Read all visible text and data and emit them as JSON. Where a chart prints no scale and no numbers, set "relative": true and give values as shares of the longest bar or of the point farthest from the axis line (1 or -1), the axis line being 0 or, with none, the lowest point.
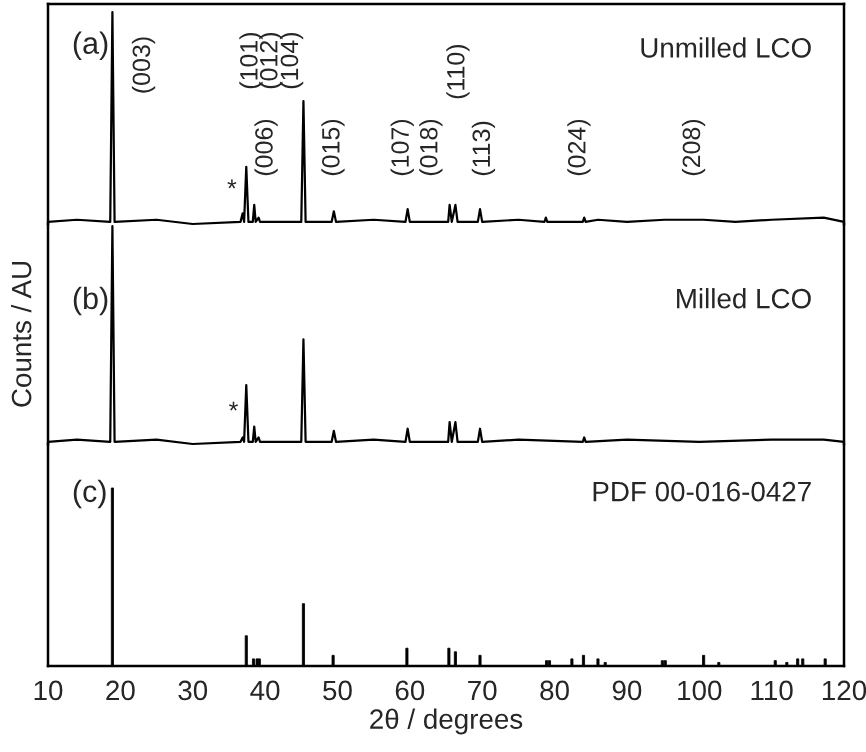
{
  "chart_data": [
    {
      "type": "line",
      "relative": true,
      "xlim": [
        10,
        120
      ],
      "tick_labels": false,
      "series": [
        {
          "color": "#000000",
          "x": [
            10,
            14,
            18.6,
            18.9,
            19.2,
            25,
            30,
            36.6,
            36.9,
            37.1,
            37.4,
            37.7,
            38.3,
            38.5,
            38.7,
            39.1,
            39.3,
            45.0,
            45.3,
            45.6,
            49.2,
            49.5,
            49.8,
            55,
            59.4,
            59.7,
            60.0,
            65.3,
            65.5,
            65.8,
            66.3,
            66.6,
            69.4,
            69.7,
            70.0,
            75,
            78.6,
            78.8,
            79.0,
            83.9,
            84.1,
            84.3,
            86,
            90,
            95.2,
            100.6,
            105,
            110,
            117.2,
            120
          ],
          "values": [
            0.01,
            0.02,
            0.01,
            1.0,
            0.01,
            0.02,
            0,
            0.01,
            0.05,
            0.01,
            0.27,
            0.01,
            0.01,
            0.09,
            0.01,
            0.03,
            0.01,
            0.01,
            0.58,
            0.01,
            0.01,
            0.06,
            0.01,
            0.02,
            0.01,
            0.07,
            0.01,
            0.01,
            0.09,
            0.01,
            0.09,
            0.01,
            0.01,
            0.07,
            0.01,
            0.02,
            0.01,
            0.03,
            0.01,
            0.01,
            0.03,
            0.01,
            0.02,
            0.01,
            0.02,
            0.02,
            0.01,
            0.02,
            0.03,
            0.01
          ]
        }
      ],
      "xticks": [
        10,
        20,
        30,
        40,
        50,
        60,
        70,
        80,
        90,
        100,
        110,
        120
      ],
      "annotations": [
        "(a)",
        "Unmilled LCO",
        "(003)",
        "(101)",
        "(012)",
        "(104)",
        "(006)",
        "(015)",
        "(107)",
        "(018)",
        "(110)",
        "(113)",
        "(024)",
        "(208)",
        "*"
      ]
    },
    {
      "type": "line",
      "relative": true,
      "xlim": [
        10,
        120
      ],
      "tick_labels": false,
      "ylabel": "Counts / AU",
      "xticks": [
        10,
        20,
        30,
        40,
        50,
        60,
        70,
        80,
        90,
        100,
        110,
        120
      ],
      "series": [
        {
          "color": "#000000",
          "x": [
            10,
            14,
            18.6,
            18.9,
            19.2,
            25,
            30,
            36.6,
            36.9,
            37.1,
            37.4,
            37.7,
            38.3,
            38.5,
            38.7,
            39.1,
            39.3,
            45.0,
            45.3,
            45.6,
            49.2,
            49.5,
            49.8,
            55,
            59.4,
            59.7,
            60.0,
            65.3,
            65.5,
            65.8,
            66.3,
            66.6,
            69.4,
            69.7,
            70.0,
            75,
            83.9,
            84.1,
            84.3,
            90,
            100,
            110,
            117.2,
            120
          ],
          "values": [
            0.01,
            0.02,
            0.01,
            1.0,
            0.01,
            0.02,
            0,
            0.01,
            0.03,
            0.01,
            0.27,
            0.01,
            0.01,
            0.08,
            0.01,
            0.03,
            0.01,
            0.01,
            0.48,
            0.01,
            0.01,
            0.06,
            0.01,
            0.02,
            0.01,
            0.07,
            0.01,
            0.01,
            0.1,
            0.01,
            0.1,
            0.01,
            0.01,
            0.07,
            0.01,
            0.02,
            0.01,
            0.03,
            0.01,
            0.02,
            0.01,
            0.02,
            0.02,
            0.01
          ]
        }
      ],
      "annotations": [
        "(b)",
        "Milled LCO",
        "*"
      ]
    },
    {
      "type": "bar",
      "relative": true,
      "xlim": [
        10,
        120
      ],
      "xticks": [
        10,
        20,
        30,
        40,
        50,
        60,
        70,
        80,
        90,
        100,
        110,
        120
      ],
      "xlabel": "2θ / degrees",
      "x": [
        18.9,
        37.4,
        38.4,
        38.9,
        39.2,
        45.3,
        49.4,
        59.6,
        65.4,
        66.3,
        69.7,
        78.9,
        79.3,
        82.4,
        84.0,
        86.0,
        87.0,
        94.9,
        95.3,
        100.6,
        102.7,
        110.5,
        112.1,
        113.6,
        114.3,
        117.4
      ],
      "series": [
        {
          "color": "#000000",
          "values": [
            1.0,
            0.17,
            0.04,
            0.04,
            0.04,
            0.35,
            0.06,
            0.1,
            0.1,
            0.08,
            0.06,
            0.03,
            0.03,
            0.04,
            0.06,
            0.04,
            0.02,
            0.03,
            0.03,
            0.06,
            0.02,
            0.03,
            0.02,
            0.04,
            0.04,
            0.04
          ]
        }
      ],
      "annotations": [
        "(c)",
        "PDF 00-016-0427"
      ]
    }
  ]
}
